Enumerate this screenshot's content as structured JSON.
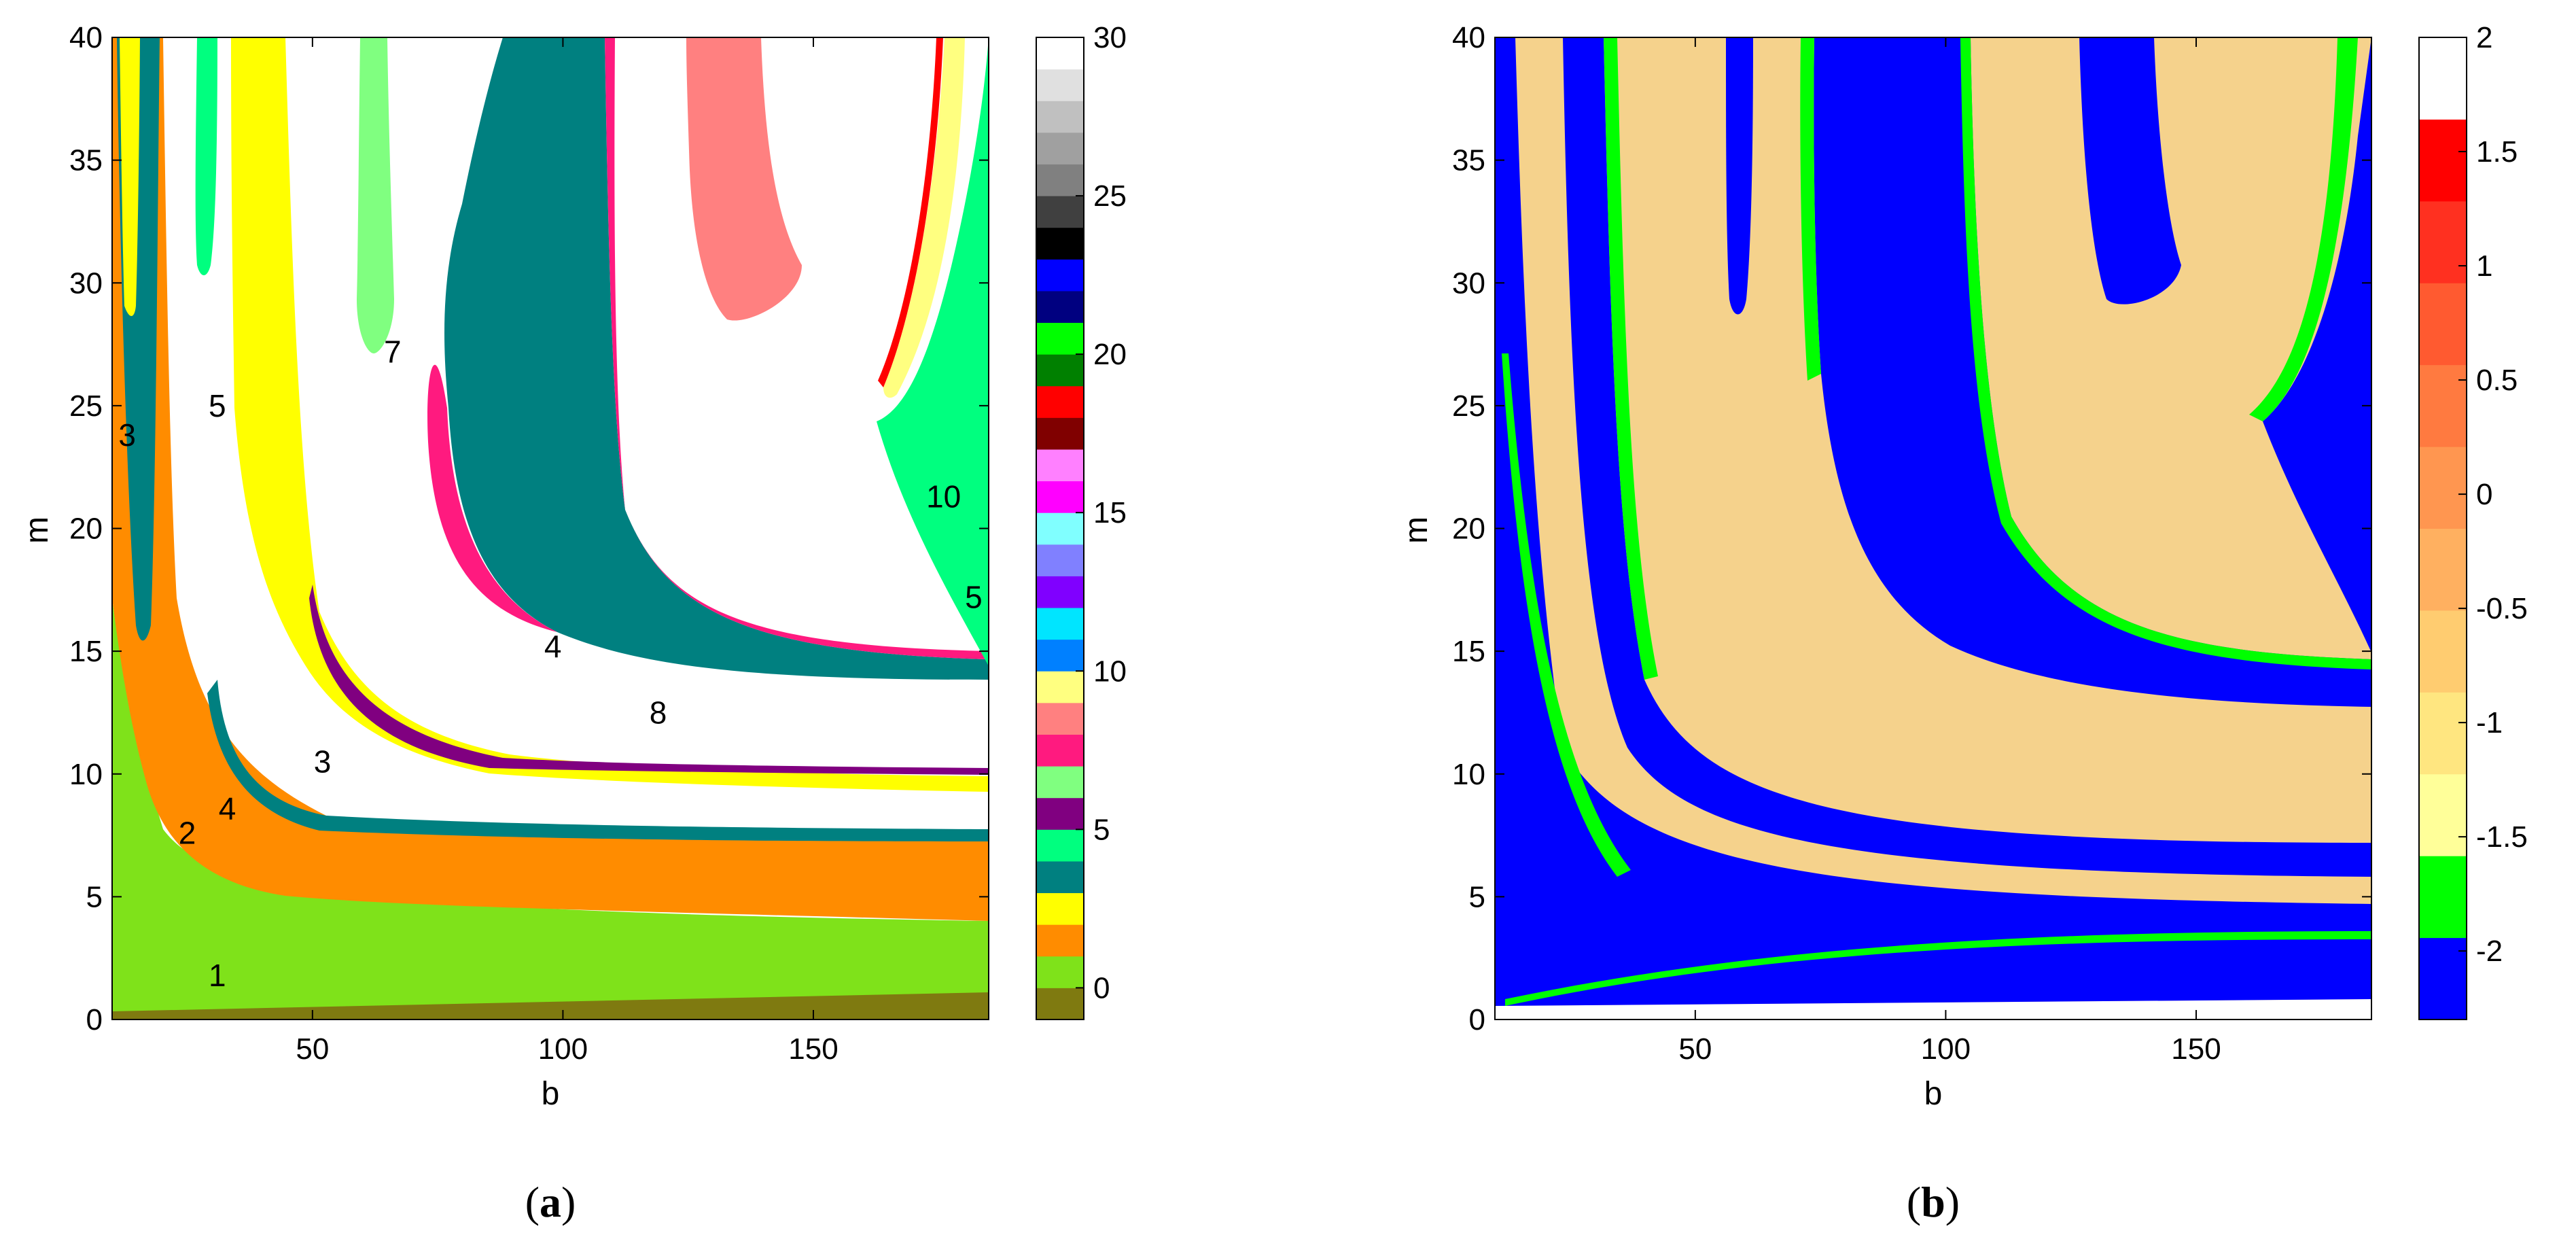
{
  "chart_data": [
    {
      "type": "heatmap",
      "panel_label": "a",
      "xlabel": "b",
      "ylabel": "m",
      "xlim": [
        10,
        185
      ],
      "ylim": [
        0,
        40
      ],
      "x_ticks": [
        50,
        100,
        150
      ],
      "y_ticks": [
        0,
        5,
        10,
        15,
        20,
        25,
        30,
        35,
        40
      ],
      "colorbar": {
        "range": [
          -1,
          30
        ],
        "ticks": [
          0,
          5,
          10,
          15,
          20,
          25,
          30
        ],
        "colors": [
          "#7f7a10",
          "#7fe21a",
          "#ff8c00",
          "#ffff00",
          "#008080",
          "#00ff7f",
          "#800080",
          "#80ff80",
          "#ff1a7f",
          "#ff8080",
          "#ffff80",
          "#0080ff",
          "#00e5ff",
          "#8000ff",
          "#8080ff",
          "#80ffff",
          "#ff00ff",
          "#ff80ff",
          "#800000",
          "#ff0000",
          "#008000",
          "#00ff00",
          "#000080",
          "#0000ff",
          "#000000",
          "#404040",
          "#808080",
          "#a0a0a0",
          "#c0c0c0",
          "#e0e0e0",
          "#ffffff"
        ]
      },
      "annotations": [
        {
          "text": "1",
          "x": 31,
          "y": 1.8
        },
        {
          "text": "2",
          "x": 25,
          "y": 7.6
        },
        {
          "text": "4",
          "x": 33,
          "y": 8.6
        },
        {
          "text": "3",
          "x": 13,
          "y": 23.8
        },
        {
          "text": "5",
          "x": 31,
          "y": 25.0
        },
        {
          "text": "3",
          "x": 52,
          "y": 10.5
        },
        {
          "text": "7",
          "x": 66,
          "y": 27.2
        },
        {
          "text": "4",
          "x": 98,
          "y": 15.2
        },
        {
          "text": "8",
          "x": 119,
          "y": 12.5
        },
        {
          "text": "10",
          "x": 176,
          "y": 21.3
        },
        {
          "text": "5",
          "x": 182,
          "y": 17.2
        }
      ]
    },
    {
      "type": "heatmap",
      "panel_label": "b",
      "xlabel": "b",
      "ylabel": "m",
      "xlim": [
        10,
        185
      ],
      "ylim": [
        0,
        40
      ],
      "x_ticks": [
        50,
        100,
        150
      ],
      "y_ticks": [
        0,
        5,
        10,
        15,
        20,
        25,
        30,
        35,
        40
      ],
      "colorbar": {
        "range": [
          -2.3,
          2.0
        ],
        "ticks": [
          -2,
          -1.5,
          -1,
          -0.5,
          0,
          0.5,
          1,
          1.5,
          2
        ],
        "tick_labels": [
          "-2",
          "-1.5",
          "-1",
          "-0.5",
          "0",
          "0.5",
          "1",
          "1.5",
          "2"
        ],
        "colors": [
          "#0000ff",
          "#00ff00",
          "#ffff99",
          "#ffe680",
          "#ffcc70",
          "#ffb060",
          "#ff9650",
          "#ff7a40",
          "#ff5a30",
          "#ff3020",
          "#ff0000",
          "#ffffff"
        ]
      },
      "annotations": []
    }
  ],
  "colors": {
    "lime": "#7fe21a",
    "olive": "#7f7a10",
    "orange": "#ff8c00",
    "yellow": "#ffff00",
    "teal": "#008080",
    "mint": "#00ff7f",
    "purple": "#800080",
    "pink": "#ff1a7f",
    "salmon": "#ff8080",
    "light_green": "#80ff80",
    "blue": "#0000ff",
    "green": "#00ff00",
    "sand": "#f5d28c",
    "red": "#ff0000"
  }
}
